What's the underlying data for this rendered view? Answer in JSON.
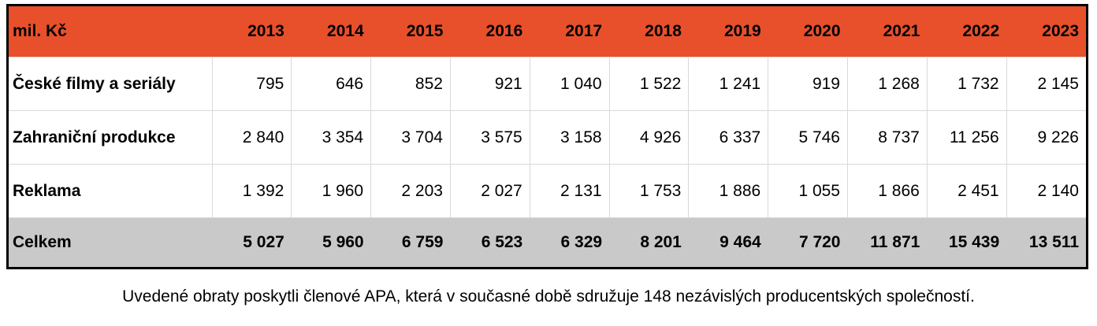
{
  "chart_data": {
    "type": "table",
    "unit_label": "mil. Kč",
    "categories": [
      "2013",
      "2014",
      "2015",
      "2016",
      "2017",
      "2018",
      "2019",
      "2020",
      "2021",
      "2022",
      "2023"
    ],
    "series": [
      {
        "name": "České filmy a seriály",
        "values": [
          795,
          646,
          852,
          921,
          1040,
          1522,
          1241,
          919,
          1268,
          1732,
          2145
        ],
        "is_total": false
      },
      {
        "name": "Zahraniční produkce",
        "values": [
          2840,
          3354,
          3704,
          3575,
          3158,
          4926,
          6337,
          5746,
          8737,
          11256,
          9226
        ],
        "is_total": false
      },
      {
        "name": "Reklama",
        "values": [
          1392,
          1960,
          2203,
          2027,
          2131,
          1753,
          1886,
          1055,
          1866,
          2451,
          2140
        ],
        "is_total": false
      },
      {
        "name": "Celkem",
        "values": [
          5027,
          5960,
          6759,
          6523,
          6329,
          8201,
          9464,
          7720,
          11871,
          15439,
          13511
        ],
        "is_total": true
      }
    ],
    "number_format": "thousands separated by space",
    "layout": "first column row labels, 11 year columns, totals row at bottom"
  },
  "colors": {
    "header_bg": "#E8502B",
    "total_row_bg": "#C9C9C9",
    "grid_line": "#D9D9D9",
    "outer_border": "#000000",
    "text": "#000000"
  },
  "footer": {
    "note": "Uvedené obraty poskytli členové APA, která v současné době sdružuje 148 nezávislých producentských společností."
  }
}
